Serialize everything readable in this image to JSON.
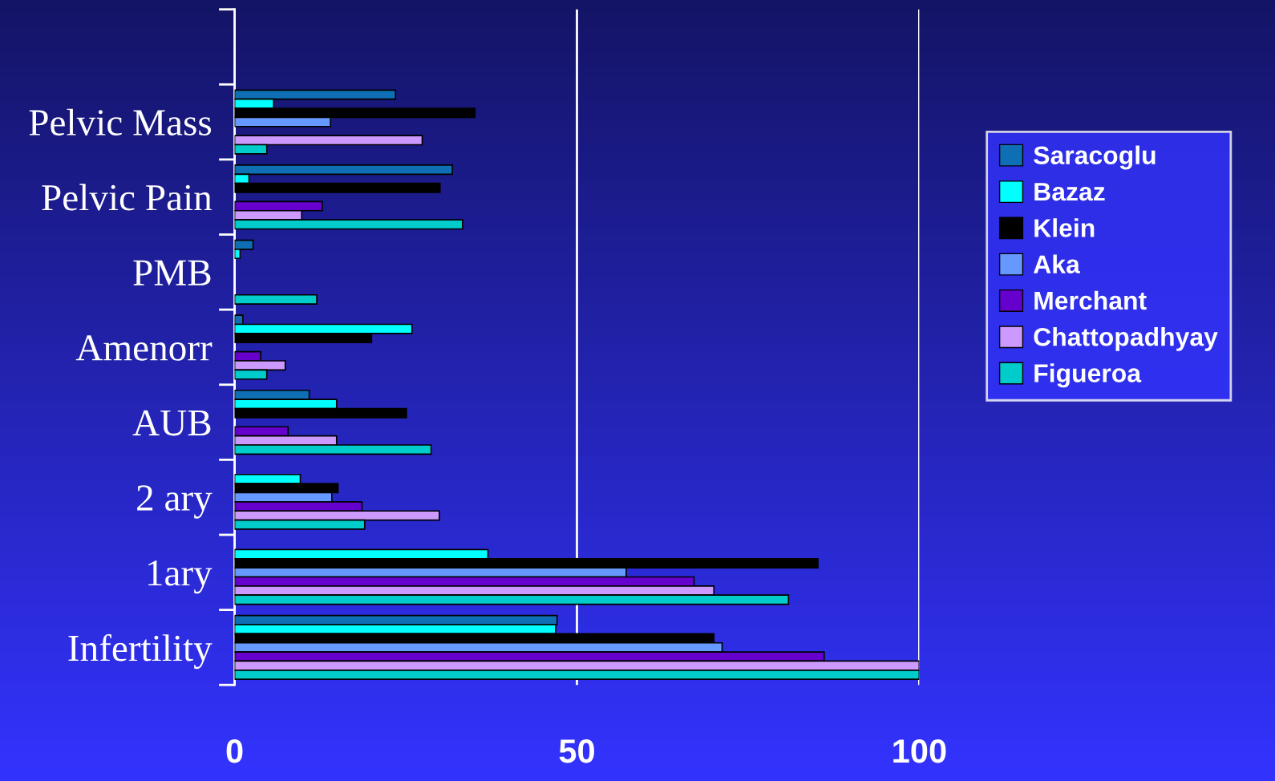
{
  "chart_data": {
    "type": "bar",
    "orientation": "horizontal",
    "categories": [
      null,
      "Pelvic Mass",
      "Pelvic Pain",
      "PMB",
      "Amenorr",
      "AUB",
      "2 ary",
      "1ary",
      "Infertility"
    ],
    "series": [
      {
        "name": "Saracoglu",
        "color": "#0f6fb5",
        "values": [
          null,
          23.5,
          31.8,
          2.7,
          1.2,
          10.9,
          null,
          null,
          47.1
        ]
      },
      {
        "name": "Bazaz",
        "color": "#00ffff",
        "values": [
          null,
          5.7,
          2.1,
          0.8,
          25.9,
          14.9,
          9.6,
          37,
          46.9
        ]
      },
      {
        "name": "Klein",
        "color": "#000000",
        "values": [
          null,
          35.1,
          30,
          null,
          20,
          25.1,
          15.1,
          85.2,
          70
        ]
      },
      {
        "name": "Aka",
        "color": "#6699ff",
        "values": [
          null,
          14,
          null,
          null,
          null,
          null,
          14.2,
          57.2,
          71.2
        ]
      },
      {
        "name": "Merchant",
        "color": "#6600cc",
        "values": [
          null,
          null,
          12.8,
          null,
          3.8,
          7.8,
          18.6,
          67.1,
          86.1
        ]
      },
      {
        "name": "Chattopadhyay",
        "color": "#cc99ff",
        "values": [
          null,
          27.4,
          9.8,
          null,
          7.4,
          14.9,
          29.9,
          70,
          100
        ]
      },
      {
        "name": "Figueroa",
        "color": "#00cccc",
        "values": [
          null,
          4.7,
          33.3,
          12,
          4.7,
          28.7,
          19,
          80.9,
          100
        ]
      }
    ],
    "xlim": [
      0,
      100
    ],
    "xticks": [
      0,
      50,
      100
    ],
    "grid": "x",
    "legend": "right"
  }
}
